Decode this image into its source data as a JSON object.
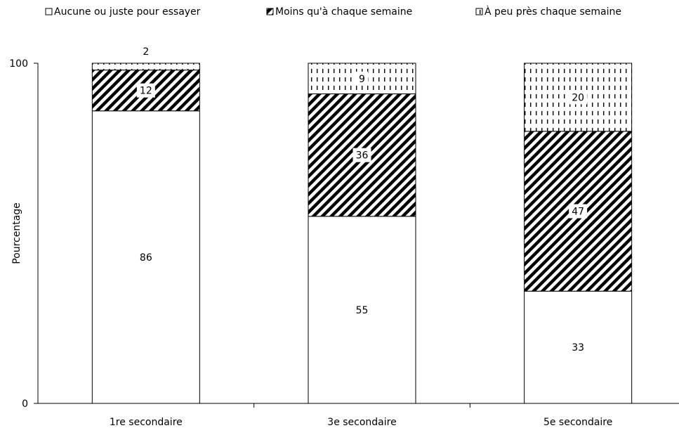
{
  "chart_data": {
    "type": "bar",
    "stacked": true,
    "categories": [
      "1re secondaire",
      "3e secondaire",
      "5e secondaire"
    ],
    "series": [
      {
        "name": "Aucune ou juste pour essayer",
        "values": [
          86,
          55,
          33
        ],
        "pattern": "none"
      },
      {
        "name": "Moins qu'à chaque semaine",
        "values": [
          12,
          36,
          47
        ],
        "pattern": "diagonal-hatch"
      },
      {
        "name": "À peu près chaque semaine",
        "values": [
          2,
          9,
          20
        ],
        "pattern": "dashed-vertical"
      }
    ],
    "ylabel": "Pourcentage",
    "xlabel": "",
    "ylim": [
      0,
      100
    ],
    "yticks": [
      0,
      100
    ],
    "legend_position": "top",
    "grid": false,
    "colors": {
      "background": "#ffffff",
      "ink": "#000000",
      "bar_fill": "#ffffff"
    }
  }
}
